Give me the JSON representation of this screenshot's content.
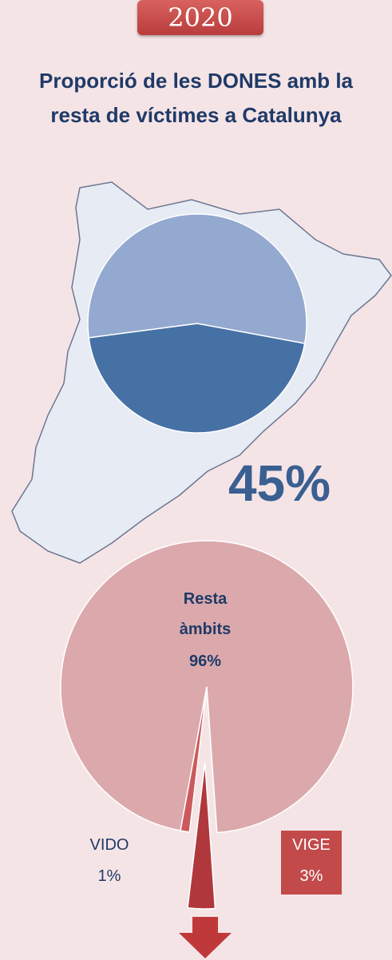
{
  "badge": "2020",
  "title": "Proporció de les DONES amb la resta de víctimes a Catalunya",
  "chart_data": [
    {
      "type": "pie",
      "categories": [
        null,
        null
      ],
      "values": [
        45,
        55
      ],
      "value_labels": [
        "45%",
        null
      ],
      "colors": [
        "#4671a5",
        "#93a9d0"
      ]
    },
    {
      "type": "pie",
      "categories": [
        "Resta àmbits",
        "VIDO",
        "VIGE"
      ],
      "values": [
        96,
        1,
        3
      ],
      "value_labels": [
        "96%",
        "1%",
        "3%"
      ],
      "colors": [
        "#dba9ab",
        "#cc5a5d",
        "#b0383c"
      ],
      "explode": [
        false,
        false,
        true
      ]
    }
  ]
}
